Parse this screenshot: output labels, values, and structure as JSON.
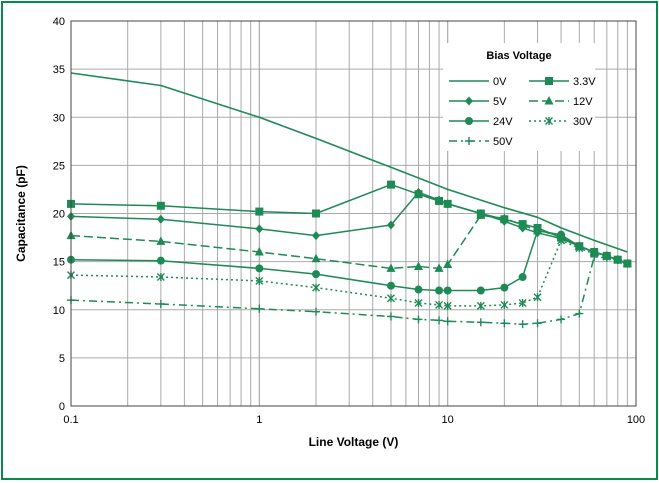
{
  "colors": {
    "frame": "#0a8a4a",
    "series": "#1e8a55",
    "grid": "#aaaaaa"
  },
  "chart_data": {
    "type": "line",
    "xlabel": "Line Voltage (V)",
    "ylabel": "Capacitance (pF)",
    "xscale": "log",
    "xlim": [
      0.1,
      100
    ],
    "ylim": [
      0,
      40
    ],
    "grid": true,
    "legend_placement": "top-right",
    "legend_title": "Bias Voltage",
    "x_tick_labels": [
      "0.1",
      "1",
      "10",
      "100"
    ],
    "y_tick_labels": [
      "0",
      "5",
      "10",
      "15",
      "20",
      "25",
      "30",
      "35",
      "40"
    ],
    "series": [
      {
        "name": "0V",
        "marker": "none",
        "dash": "solid",
        "x": [
          0.1,
          0.3,
          1,
          2,
          5,
          10,
          20,
          30,
          40,
          60,
          90
        ],
        "y": [
          34.6,
          33.3,
          30.0,
          27.8,
          24.8,
          22.5,
          20.6,
          19.6,
          18.5,
          17.2,
          16.0
        ]
      },
      {
        "name": "3.3V",
        "marker": "square",
        "dash": "solid",
        "x": [
          0.1,
          0.3,
          1,
          2,
          5,
          7,
          9,
          10,
          15,
          20,
          25,
          30,
          40,
          50,
          60,
          70,
          80,
          90
        ],
        "y": [
          21.0,
          20.8,
          20.2,
          20.0,
          23.0,
          22.0,
          21.3,
          21.0,
          20.0,
          19.4,
          18.9,
          18.5,
          17.5,
          16.6,
          16.0,
          15.6,
          15.2,
          14.8
        ]
      },
      {
        "name": "5V",
        "marker": "diamond",
        "dash": "solid",
        "x": [
          0.1,
          0.3,
          1,
          2,
          5,
          7,
          9,
          10,
          15,
          20,
          25,
          30,
          40,
          50,
          60,
          70,
          80,
          90
        ],
        "y": [
          19.7,
          19.4,
          18.4,
          17.7,
          18.8,
          22.2,
          21.4,
          21.0,
          20.0,
          19.2,
          18.5,
          18.0,
          17.4,
          16.6,
          16.0,
          15.6,
          15.2,
          14.8
        ]
      },
      {
        "name": "12V",
        "marker": "triangle",
        "dash": "dashed",
        "x": [
          0.1,
          0.3,
          1,
          2,
          5,
          7,
          9,
          10,
          15,
          20,
          25,
          30,
          40,
          50,
          60,
          70,
          80,
          90
        ],
        "y": [
          17.7,
          17.1,
          16.0,
          15.3,
          14.3,
          14.5,
          14.3,
          14.7,
          19.8,
          19.5,
          18.8,
          18.2,
          17.7,
          16.6,
          16.0,
          15.6,
          15.2,
          14.8
        ]
      },
      {
        "name": "24V",
        "marker": "circle",
        "dash": "solid",
        "x": [
          0.1,
          0.3,
          1,
          2,
          5,
          7,
          9,
          10,
          15,
          20,
          25,
          30,
          40,
          50,
          60,
          70,
          80,
          90
        ],
        "y": [
          15.2,
          15.1,
          14.3,
          13.7,
          12.5,
          12.1,
          12.0,
          12.0,
          12.0,
          12.3,
          13.4,
          18.2,
          17.8,
          16.6,
          16.0,
          15.6,
          15.2,
          14.8
        ]
      },
      {
        "name": "30V",
        "marker": "asterisk",
        "dash": "dotted",
        "x": [
          0.1,
          0.3,
          1,
          2,
          5,
          7,
          9,
          10,
          15,
          20,
          25,
          30,
          40,
          50,
          60,
          70,
          80,
          90
        ],
        "y": [
          13.6,
          13.4,
          13.0,
          12.3,
          11.2,
          10.7,
          10.5,
          10.4,
          10.4,
          10.5,
          10.7,
          11.3,
          17.2,
          16.4,
          15.8,
          15.5,
          15.2,
          14.8
        ]
      },
      {
        "name": "50V",
        "marker": "plus",
        "dash": "dash-dot",
        "x": [
          0.1,
          0.3,
          1,
          2,
          5,
          7,
          9,
          10,
          15,
          20,
          25,
          30,
          40,
          50,
          60,
          70,
          80,
          90
        ],
        "y": [
          11.0,
          10.6,
          10.1,
          9.8,
          9.3,
          9.0,
          8.9,
          8.8,
          8.7,
          8.6,
          8.5,
          8.6,
          9.0,
          9.6,
          15.5,
          15.4,
          15.2,
          14.8
        ]
      }
    ]
  }
}
